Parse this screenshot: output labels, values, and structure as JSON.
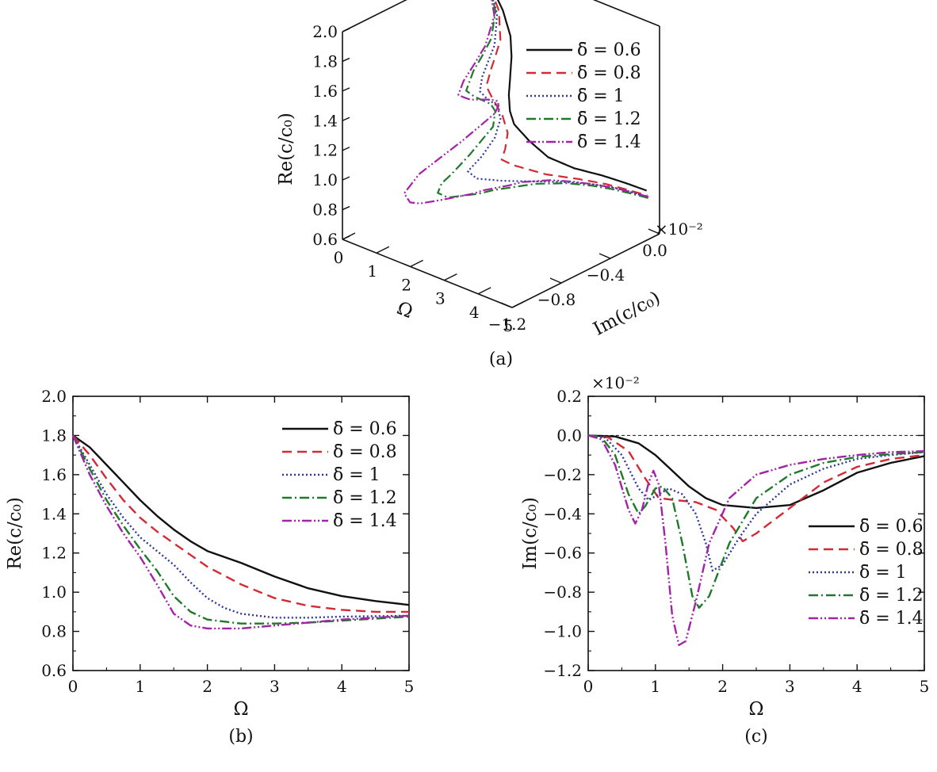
{
  "styles": {
    "colors": {
      "d06": "#111111",
      "d08": "#d42a35",
      "d10": "#2e3a9a",
      "d12": "#1e7a2a",
      "d14": "#a323a8",
      "axis": "#111111",
      "zero_ref": "#111111"
    },
    "dashes": {
      "d06": "",
      "d08": "12,7",
      "d10": "2,3",
      "d12": "12,4,2,4",
      "d14": "12,3,2,3,2,3"
    }
  },
  "legend_labels": [
    "δ̄ = 0.6",
    "δ̄ = 0.8",
    "δ̄ = 1",
    "δ̄ = 1.2",
    "δ̄ = 1.4"
  ],
  "chart_data": [
    {
      "id": "a",
      "type": "line",
      "projection": "3d",
      "caption": "(a)",
      "xlabel": "Ω",
      "ylabel": "Im(c/c₀)",
      "zlabel": "Re(c/c₀)",
      "xlim": [
        0,
        5
      ],
      "ylim": [
        -1.2,
        0.0
      ],
      "zlim": [
        0.6,
        2.0
      ],
      "x_ticks": [
        "0",
        "1",
        "2",
        "3",
        "4",
        "5"
      ],
      "y_ticks": [
        "−1.2",
        "−0.8",
        "−0.4",
        "0.0"
      ],
      "z_ticks": [
        "0.6",
        "0.8",
        "1.0",
        "1.2",
        "1.4",
        "1.6",
        "1.8",
        "2.0"
      ],
      "y_scale_label": "×10⁻²",
      "grid": false,
      "legend_position": "top-right",
      "series_from": "b_and_c"
    },
    {
      "id": "b",
      "type": "line",
      "caption": "(b)",
      "xlabel": "Ω",
      "ylabel": "Re(c/c₀)",
      "xlim": [
        0,
        5
      ],
      "ylim": [
        0.6,
        2.0
      ],
      "x_ticks": [
        "0",
        "1",
        "2",
        "3",
        "4",
        "5"
      ],
      "y_ticks": [
        "0.6",
        "0.8",
        "1.0",
        "1.2",
        "1.4",
        "1.6",
        "1.8",
        "2.0"
      ],
      "grid": false,
      "legend_position": "top-right",
      "series": [
        {
          "name": "δ̄ = 0.6",
          "key": "d06",
          "points": [
            [
              0,
              1.8
            ],
            [
              0.25,
              1.74
            ],
            [
              0.5,
              1.65
            ],
            [
              0.75,
              1.56
            ],
            [
              1,
              1.47
            ],
            [
              1.25,
              1.39
            ],
            [
              1.5,
              1.32
            ],
            [
              1.75,
              1.26
            ],
            [
              2,
              1.21
            ],
            [
              2.5,
              1.15
            ],
            [
              3,
              1.08
            ],
            [
              3.5,
              1.02
            ],
            [
              4,
              0.98
            ],
            [
              4.5,
              0.955
            ],
            [
              5,
              0.935
            ]
          ]
        },
        {
          "name": "δ̄ = 0.8",
          "key": "d08",
          "points": [
            [
              0,
              1.8
            ],
            [
              0.25,
              1.7
            ],
            [
              0.5,
              1.58
            ],
            [
              0.75,
              1.47
            ],
            [
              1,
              1.38
            ],
            [
              1.25,
              1.31
            ],
            [
              1.5,
              1.25
            ],
            [
              1.75,
              1.19
            ],
            [
              2,
              1.13
            ],
            [
              2.5,
              1.04
            ],
            [
              3,
              0.97
            ],
            [
              3.5,
              0.93
            ],
            [
              4,
              0.91
            ],
            [
              4.5,
              0.9
            ],
            [
              5,
              0.9
            ]
          ]
        },
        {
          "name": "δ̄ = 1",
          "key": "d10",
          "points": [
            [
              0,
              1.8
            ],
            [
              0.25,
              1.65
            ],
            [
              0.5,
              1.5
            ],
            [
              0.75,
              1.38
            ],
            [
              1,
              1.28
            ],
            [
              1.25,
              1.21
            ],
            [
              1.5,
              1.14
            ],
            [
              1.75,
              1.05
            ],
            [
              2,
              0.97
            ],
            [
              2.25,
              0.92
            ],
            [
              2.5,
              0.89
            ],
            [
              3,
              0.87
            ],
            [
              3.5,
              0.87
            ],
            [
              4,
              0.875
            ],
            [
              5,
              0.88
            ]
          ]
        },
        {
          "name": "δ̄ = 1.2",
          "key": "d12",
          "points": [
            [
              0,
              1.8
            ],
            [
              0.25,
              1.63
            ],
            [
              0.5,
              1.47
            ],
            [
              0.75,
              1.34
            ],
            [
              1,
              1.22
            ],
            [
              1.25,
              1.11
            ],
            [
              1.5,
              0.98
            ],
            [
              1.75,
              0.9
            ],
            [
              2,
              0.86
            ],
            [
              2.5,
              0.84
            ],
            [
              3,
              0.84
            ],
            [
              3.5,
              0.845
            ],
            [
              4,
              0.855
            ],
            [
              5,
              0.875
            ]
          ]
        },
        {
          "name": "δ̄ = 1.4",
          "key": "d14",
          "points": [
            [
              0,
              1.8
            ],
            [
              0.25,
              1.6
            ],
            [
              0.5,
              1.44
            ],
            [
              0.75,
              1.3
            ],
            [
              1,
              1.18
            ],
            [
              1.25,
              1.04
            ],
            [
              1.5,
              0.89
            ],
            [
              1.75,
              0.83
            ],
            [
              2,
              0.815
            ],
            [
              2.5,
              0.815
            ],
            [
              3,
              0.83
            ],
            [
              3.5,
              0.845
            ],
            [
              4,
              0.86
            ],
            [
              5,
              0.88
            ]
          ]
        }
      ]
    },
    {
      "id": "c",
      "type": "line",
      "caption": "(c)",
      "xlabel": "Ω",
      "ylabel": "Im(c/c₀)",
      "xlim": [
        0,
        5
      ],
      "ylim": [
        -1.2,
        0.2
      ],
      "x_ticks": [
        "0",
        "1",
        "2",
        "3",
        "4",
        "5"
      ],
      "y_ticks": [
        "−1.2",
        "−1.0",
        "−0.8",
        "−0.6",
        "−0.4",
        "−0.2",
        "0.0",
        "0.2"
      ],
      "y_scale_label": "×10⁻²",
      "zero_reference_line": 0.0,
      "grid": false,
      "legend_position": "center-right",
      "series": [
        {
          "name": "δ̄ = 0.6",
          "key": "d06",
          "points": [
            [
              0,
              0
            ],
            [
              0.4,
              -0.005
            ],
            [
              0.75,
              -0.04
            ],
            [
              1,
              -0.1
            ],
            [
              1.25,
              -0.18
            ],
            [
              1.5,
              -0.26
            ],
            [
              1.75,
              -0.32
            ],
            [
              2,
              -0.355
            ],
            [
              2.5,
              -0.37
            ],
            [
              3,
              -0.355
            ],
            [
              3.5,
              -0.28
            ],
            [
              4,
              -0.19
            ],
            [
              4.5,
              -0.14
            ],
            [
              5,
              -0.105
            ]
          ]
        },
        {
          "name": "δ̄ = 0.8",
          "key": "d08",
          "points": [
            [
              0,
              0
            ],
            [
              0.3,
              -0.01
            ],
            [
              0.6,
              -0.08
            ],
            [
              0.85,
              -0.22
            ],
            [
              1.05,
              -0.32
            ],
            [
              1.3,
              -0.33
            ],
            [
              1.6,
              -0.34
            ],
            [
              1.9,
              -0.38
            ],
            [
              2.15,
              -0.47
            ],
            [
              2.3,
              -0.54
            ],
            [
              2.5,
              -0.5
            ],
            [
              3,
              -0.37
            ],
            [
              3.5,
              -0.24
            ],
            [
              4,
              -0.16
            ],
            [
              4.5,
              -0.12
            ],
            [
              5,
              -0.1
            ]
          ]
        },
        {
          "name": "δ̄ = 1",
          "key": "d10",
          "points": [
            [
              0,
              0
            ],
            [
              0.25,
              -0.01
            ],
            [
              0.5,
              -0.1
            ],
            [
              0.75,
              -0.27
            ],
            [
              0.9,
              -0.33
            ],
            [
              1.05,
              -0.3
            ],
            [
              1.2,
              -0.27
            ],
            [
              1.4,
              -0.3
            ],
            [
              1.6,
              -0.4
            ],
            [
              1.75,
              -0.55
            ],
            [
              1.85,
              -0.69
            ],
            [
              2,
              -0.66
            ],
            [
              2.25,
              -0.52
            ],
            [
              2.5,
              -0.4
            ],
            [
              3,
              -0.25
            ],
            [
              3.5,
              -0.17
            ],
            [
              4,
              -0.12
            ],
            [
              4.5,
              -0.1
            ],
            [
              5,
              -0.085
            ]
          ]
        },
        {
          "name": "δ̄ = 1.2",
          "key": "d12",
          "points": [
            [
              0,
              0
            ],
            [
              0.2,
              -0.01
            ],
            [
              0.4,
              -0.1
            ],
            [
              0.6,
              -0.3
            ],
            [
              0.75,
              -0.4
            ],
            [
              0.85,
              -0.36
            ],
            [
              1.0,
              -0.27
            ],
            [
              1.1,
              -0.26
            ],
            [
              1.25,
              -0.32
            ],
            [
              1.4,
              -0.55
            ],
            [
              1.55,
              -0.82
            ],
            [
              1.65,
              -0.88
            ],
            [
              1.8,
              -0.82
            ],
            [
              2.1,
              -0.55
            ],
            [
              2.5,
              -0.32
            ],
            [
              3,
              -0.2
            ],
            [
              3.5,
              -0.14
            ],
            [
              4,
              -0.11
            ],
            [
              4.5,
              -0.095
            ],
            [
              5,
              -0.085
            ]
          ]
        },
        {
          "name": "δ̄ = 1.4",
          "key": "d14",
          "points": [
            [
              0,
              0
            ],
            [
              0.2,
              -0.02
            ],
            [
              0.4,
              -0.15
            ],
            [
              0.6,
              -0.38
            ],
            [
              0.7,
              -0.45
            ],
            [
              0.8,
              -0.38
            ],
            [
              0.9,
              -0.24
            ],
            [
              0.97,
              -0.18
            ],
            [
              1.05,
              -0.25
            ],
            [
              1.15,
              -0.55
            ],
            [
              1.25,
              -0.92
            ],
            [
              1.35,
              -1.07
            ],
            [
              1.45,
              -1.05
            ],
            [
              1.6,
              -0.85
            ],
            [
              1.8,
              -0.55
            ],
            [
              2.1,
              -0.32
            ],
            [
              2.5,
              -0.2
            ],
            [
              3,
              -0.15
            ],
            [
              3.5,
              -0.12
            ],
            [
              4,
              -0.1
            ],
            [
              4.5,
              -0.085
            ],
            [
              5,
              -0.08
            ]
          ]
        }
      ]
    }
  ]
}
